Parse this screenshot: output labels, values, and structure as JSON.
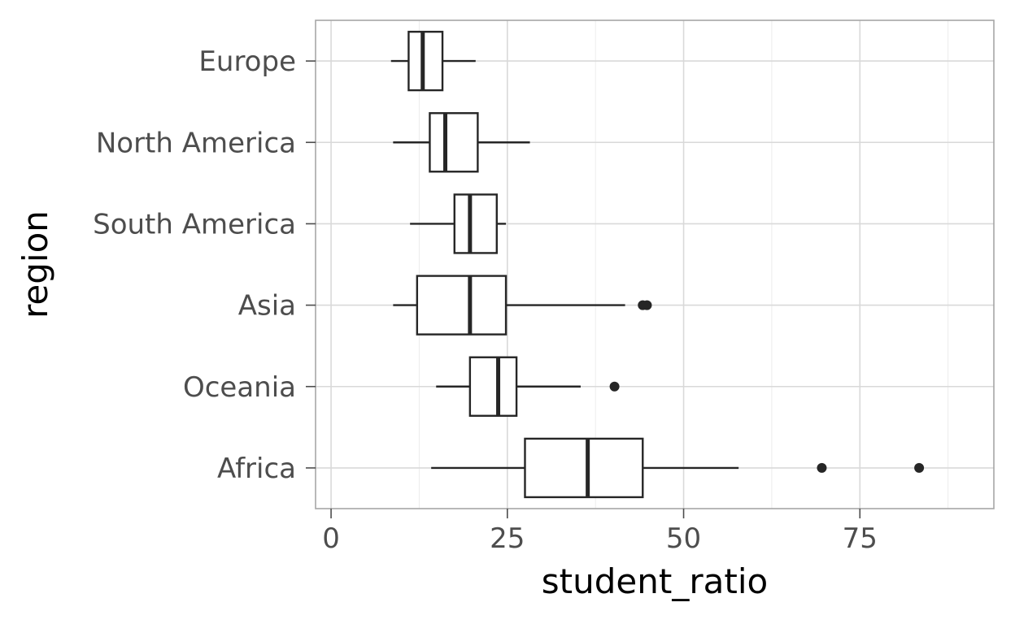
{
  "chart_data": {
    "type": "boxplot",
    "orientation": "horizontal",
    "xlabel": "student_ratio",
    "ylabel": "region",
    "xlim": [
      -2.2,
      94
    ],
    "x_ticks": [
      0,
      25,
      50,
      75
    ],
    "x_tick_labels": [
      "0",
      "25",
      "50",
      "75"
    ],
    "grid": true,
    "categories": [
      "Europe",
      "North America",
      "South America",
      "Asia",
      "Oceania",
      "Africa"
    ],
    "boxes": [
      {
        "category": "Europe",
        "whisker_low": 8.5,
        "q1": 11.0,
        "median": 13.0,
        "q3": 15.8,
        "whisker_high": 20.5,
        "outliers": []
      },
      {
        "category": "North America",
        "whisker_low": 8.8,
        "q1": 14.0,
        "median": 16.2,
        "q3": 20.8,
        "whisker_high": 28.2,
        "outliers": []
      },
      {
        "category": "South America",
        "whisker_low": 11.2,
        "q1": 17.5,
        "median": 19.7,
        "q3": 23.5,
        "whisker_high": 24.8,
        "outliers": []
      },
      {
        "category": "Asia",
        "whisker_low": 8.8,
        "q1": 12.2,
        "median": 19.7,
        "q3": 24.8,
        "whisker_high": 41.7,
        "outliers": [
          44.2,
          44.8
        ]
      },
      {
        "category": "Oceania",
        "whisker_low": 14.9,
        "q1": 19.7,
        "median": 23.7,
        "q3": 26.3,
        "whisker_high": 35.4,
        "outliers": [
          40.2
        ]
      },
      {
        "category": "Africa",
        "whisker_low": 14.2,
        "q1": 27.5,
        "median": 36.4,
        "q3": 44.2,
        "whisker_high": 57.8,
        "outliers": [
          69.6,
          83.4
        ]
      }
    ]
  }
}
